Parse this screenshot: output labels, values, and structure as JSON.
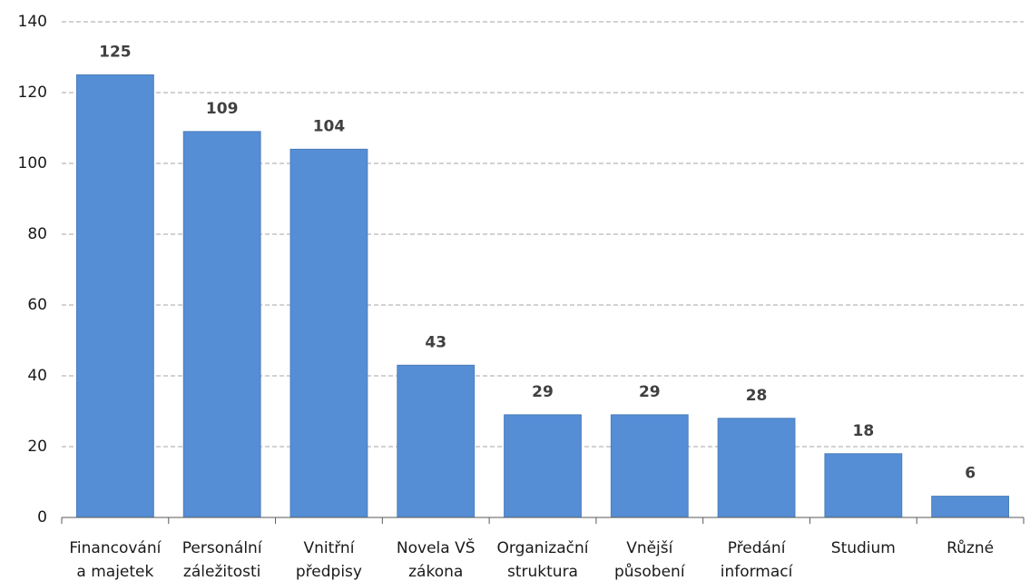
{
  "chart_data": {
    "type": "bar",
    "categories": [
      "Financování\na majetek",
      "Personální\nzáležitosti",
      "Vnitřní\npředpisy",
      "Novela VŠ\nzákona",
      "Organizační\nstruktura",
      "Vnější\npůsobení",
      "Předání\ninformací",
      "Studium",
      "Různé"
    ],
    "values": [
      125,
      109,
      104,
      43,
      29,
      29,
      28,
      18,
      6
    ],
    "color": "#558ed5",
    "ylim": [
      0,
      140
    ],
    "yticks": [
      0,
      20,
      40,
      60,
      80,
      100,
      120,
      140
    ],
    "grid": true
  }
}
